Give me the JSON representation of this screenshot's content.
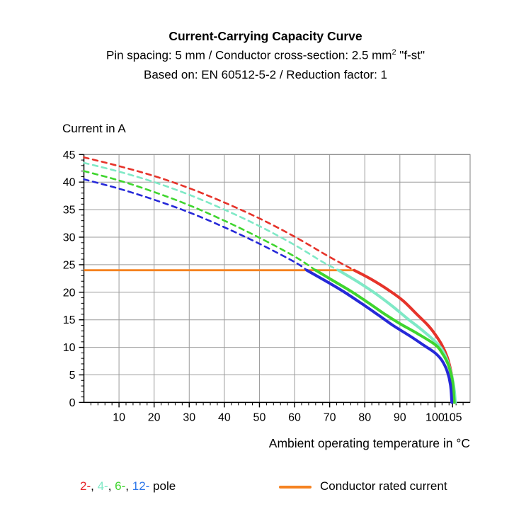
{
  "header": {
    "title": "Current-Carrying Capacity Curve",
    "subtitle1_pre": "Pin spacing: 5 mm / Conductor cross-section: 2.5 mm",
    "subtitle1_sup": "2",
    "subtitle1_post": " \"f-st\"",
    "subtitle2": "Based on: EN 60512-5-2 / Reduction factor: 1"
  },
  "legend": {
    "pole_items": [
      {
        "label": "2-",
        "color": "#e6262b"
      },
      {
        "label": "4-",
        "color": "#7fe9c6"
      },
      {
        "label": "6-",
        "color": "#3fd52e"
      },
      {
        "label": "12-",
        "color": "#2e78ea"
      }
    ],
    "separator": ", ",
    "poles_suffix": " pole",
    "rated_label": "Conductor rated current",
    "rated_color": "#f58220"
  },
  "chart_data": {
    "type": "line",
    "title": "Current-Carrying Capacity Curve",
    "xlabel": "Ambient operating temperature in °C",
    "ylabel": "Current in A",
    "xlim": [
      0,
      110
    ],
    "ylim": [
      0,
      45
    ],
    "x_ticks": [
      10,
      20,
      30,
      40,
      50,
      60,
      70,
      80,
      90,
      100,
      105
    ],
    "y_ticks": [
      0,
      5,
      10,
      15,
      20,
      25,
      30,
      35,
      40,
      45
    ],
    "x_gridlines": [
      10,
      20,
      30,
      40,
      50,
      60,
      70,
      80,
      90,
      100
    ],
    "y_gridlines": [
      5,
      10,
      15,
      20,
      25,
      30,
      35,
      40,
      45
    ],
    "x_minor_step": 2,
    "y_minor_step": 1,
    "grid": true,
    "grid_color": "#9b9b9b",
    "frame_color": "#808080",
    "axis_color": "#000000",
    "rated_line": {
      "label": "Conductor rated current",
      "y": 24,
      "x_start": 0,
      "x_end": 77,
      "color": "#f58220"
    },
    "series": [
      {
        "name": "2-pole",
        "color": "#e6332a",
        "dashed_points": [
          [
            0,
            44.5
          ],
          [
            10,
            42.9
          ],
          [
            20,
            41.1
          ],
          [
            30,
            38.9
          ],
          [
            40,
            36.3
          ],
          [
            50,
            33.4
          ],
          [
            60,
            30.1
          ],
          [
            70,
            26.4
          ],
          [
            77,
            24
          ]
        ],
        "solid_points": [
          [
            77,
            24
          ],
          [
            82,
            22.3
          ],
          [
            87,
            20.3
          ],
          [
            91,
            18.4
          ],
          [
            95,
            15.9
          ],
          [
            98,
            14.0
          ],
          [
            100,
            12.4
          ],
          [
            102,
            10.4
          ],
          [
            103.5,
            8.2
          ],
          [
            104.5,
            5.8
          ],
          [
            105.2,
            3.0
          ],
          [
            105.6,
            0
          ]
        ]
      },
      {
        "name": "4-pole",
        "color": "#7fe9c6",
        "dashed_points": [
          [
            0,
            43.5
          ],
          [
            10,
            41.9
          ],
          [
            20,
            40.0
          ],
          [
            30,
            37.7
          ],
          [
            40,
            35.0
          ],
          [
            50,
            32.0
          ],
          [
            60,
            28.6
          ],
          [
            68,
            25.5
          ],
          [
            72.5,
            24
          ]
        ],
        "solid_points": [
          [
            72.5,
            24
          ],
          [
            78,
            21.9
          ],
          [
            83,
            19.8
          ],
          [
            88,
            17.4
          ],
          [
            92,
            15.3
          ],
          [
            96,
            13.3
          ],
          [
            100,
            11.1
          ],
          [
            102,
            9.6
          ],
          [
            103.5,
            7.6
          ],
          [
            104.8,
            4.8
          ],
          [
            105.5,
            2.2
          ],
          [
            105.8,
            0
          ]
        ]
      },
      {
        "name": "6-pole",
        "color": "#3fd52e",
        "dashed_points": [
          [
            0,
            42.0
          ],
          [
            10,
            40.3
          ],
          [
            20,
            38.2
          ],
          [
            30,
            35.8
          ],
          [
            40,
            33.0
          ],
          [
            50,
            29.9
          ],
          [
            60,
            26.5
          ],
          [
            66,
            24
          ]
        ],
        "solid_points": [
          [
            66,
            24
          ],
          [
            71,
            22.1
          ],
          [
            76,
            20.2
          ],
          [
            81,
            18.1
          ],
          [
            86,
            15.9
          ],
          [
            90,
            14.3
          ],
          [
            95,
            12.5
          ],
          [
            100,
            10.5
          ],
          [
            102,
            9.0
          ],
          [
            103.8,
            6.8
          ],
          [
            105,
            3.8
          ],
          [
            105.5,
            0
          ]
        ]
      },
      {
        "name": "12-pole",
        "color": "#2629d8",
        "dashed_points": [
          [
            0,
            40.5
          ],
          [
            10,
            38.8
          ],
          [
            20,
            36.8
          ],
          [
            30,
            34.5
          ],
          [
            40,
            31.8
          ],
          [
            50,
            28.8
          ],
          [
            60,
            25.5
          ],
          [
            63.5,
            24
          ]
        ],
        "solid_points": [
          [
            63.5,
            24
          ],
          [
            69,
            22.0
          ],
          [
            74,
            20.1
          ],
          [
            79,
            18.0
          ],
          [
            84,
            15.8
          ],
          [
            88,
            14.0
          ],
          [
            93,
            12.0
          ],
          [
            97,
            10.3
          ],
          [
            100,
            9.0
          ],
          [
            102,
            7.6
          ],
          [
            103.5,
            5.6
          ],
          [
            104.4,
            3.2
          ],
          [
            104.8,
            0
          ]
        ]
      }
    ]
  }
}
